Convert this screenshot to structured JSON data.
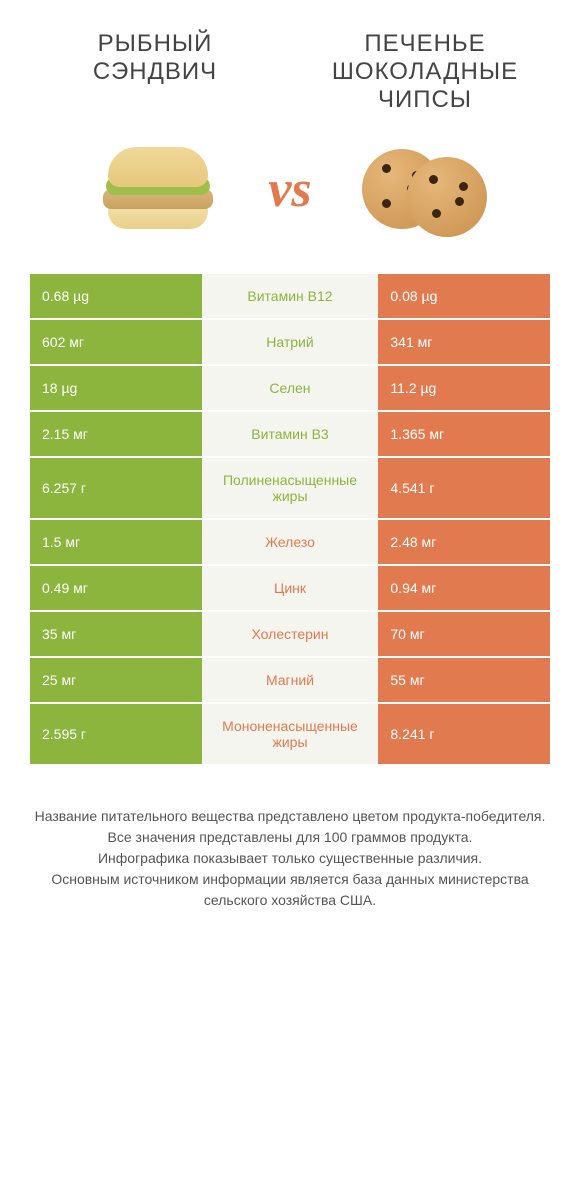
{
  "header": {
    "left_title": "Рыбный сэндвич",
    "right_title": "Печенье Шоколадные чипсы",
    "vs": "vs"
  },
  "colors": {
    "left": "#8bb53d",
    "right": "#e27a4f",
    "mid_bg": "#f5f5f0"
  },
  "rows": [
    {
      "left": "0.68 µg",
      "label": "Витамин B12",
      "right": "0.08 µg",
      "winner": "left"
    },
    {
      "left": "602 мг",
      "label": "Натрий",
      "right": "341 мг",
      "winner": "left"
    },
    {
      "left": "18 µg",
      "label": "Селен",
      "right": "11.2 µg",
      "winner": "left"
    },
    {
      "left": "2.15 мг",
      "label": "Витамин B3",
      "right": "1.365 мг",
      "winner": "left"
    },
    {
      "left": "6.257 г",
      "label": "Полиненасыщенные жиры",
      "right": "4.541 г",
      "winner": "left"
    },
    {
      "left": "1.5 мг",
      "label": "Железо",
      "right": "2.48 мг",
      "winner": "right"
    },
    {
      "left": "0.49 мг",
      "label": "Цинк",
      "right": "0.94 мг",
      "winner": "right"
    },
    {
      "left": "35 мг",
      "label": "Холестерин",
      "right": "70 мг",
      "winner": "right"
    },
    {
      "left": "25 мг",
      "label": "Магний",
      "right": "55 мг",
      "winner": "right"
    },
    {
      "left": "2.595 г",
      "label": "Мононенасыщенные жиры",
      "right": "8.241 г",
      "winner": "right"
    }
  ],
  "footnotes": [
    "Название питательного вещества представлено цветом продукта-победителя.",
    "Все значения представлены для 100 граммов продукта.",
    "Инфографика показывает только существенные различия.",
    "Основным источником информации является база данных министерства сельского хозяйства США."
  ]
}
